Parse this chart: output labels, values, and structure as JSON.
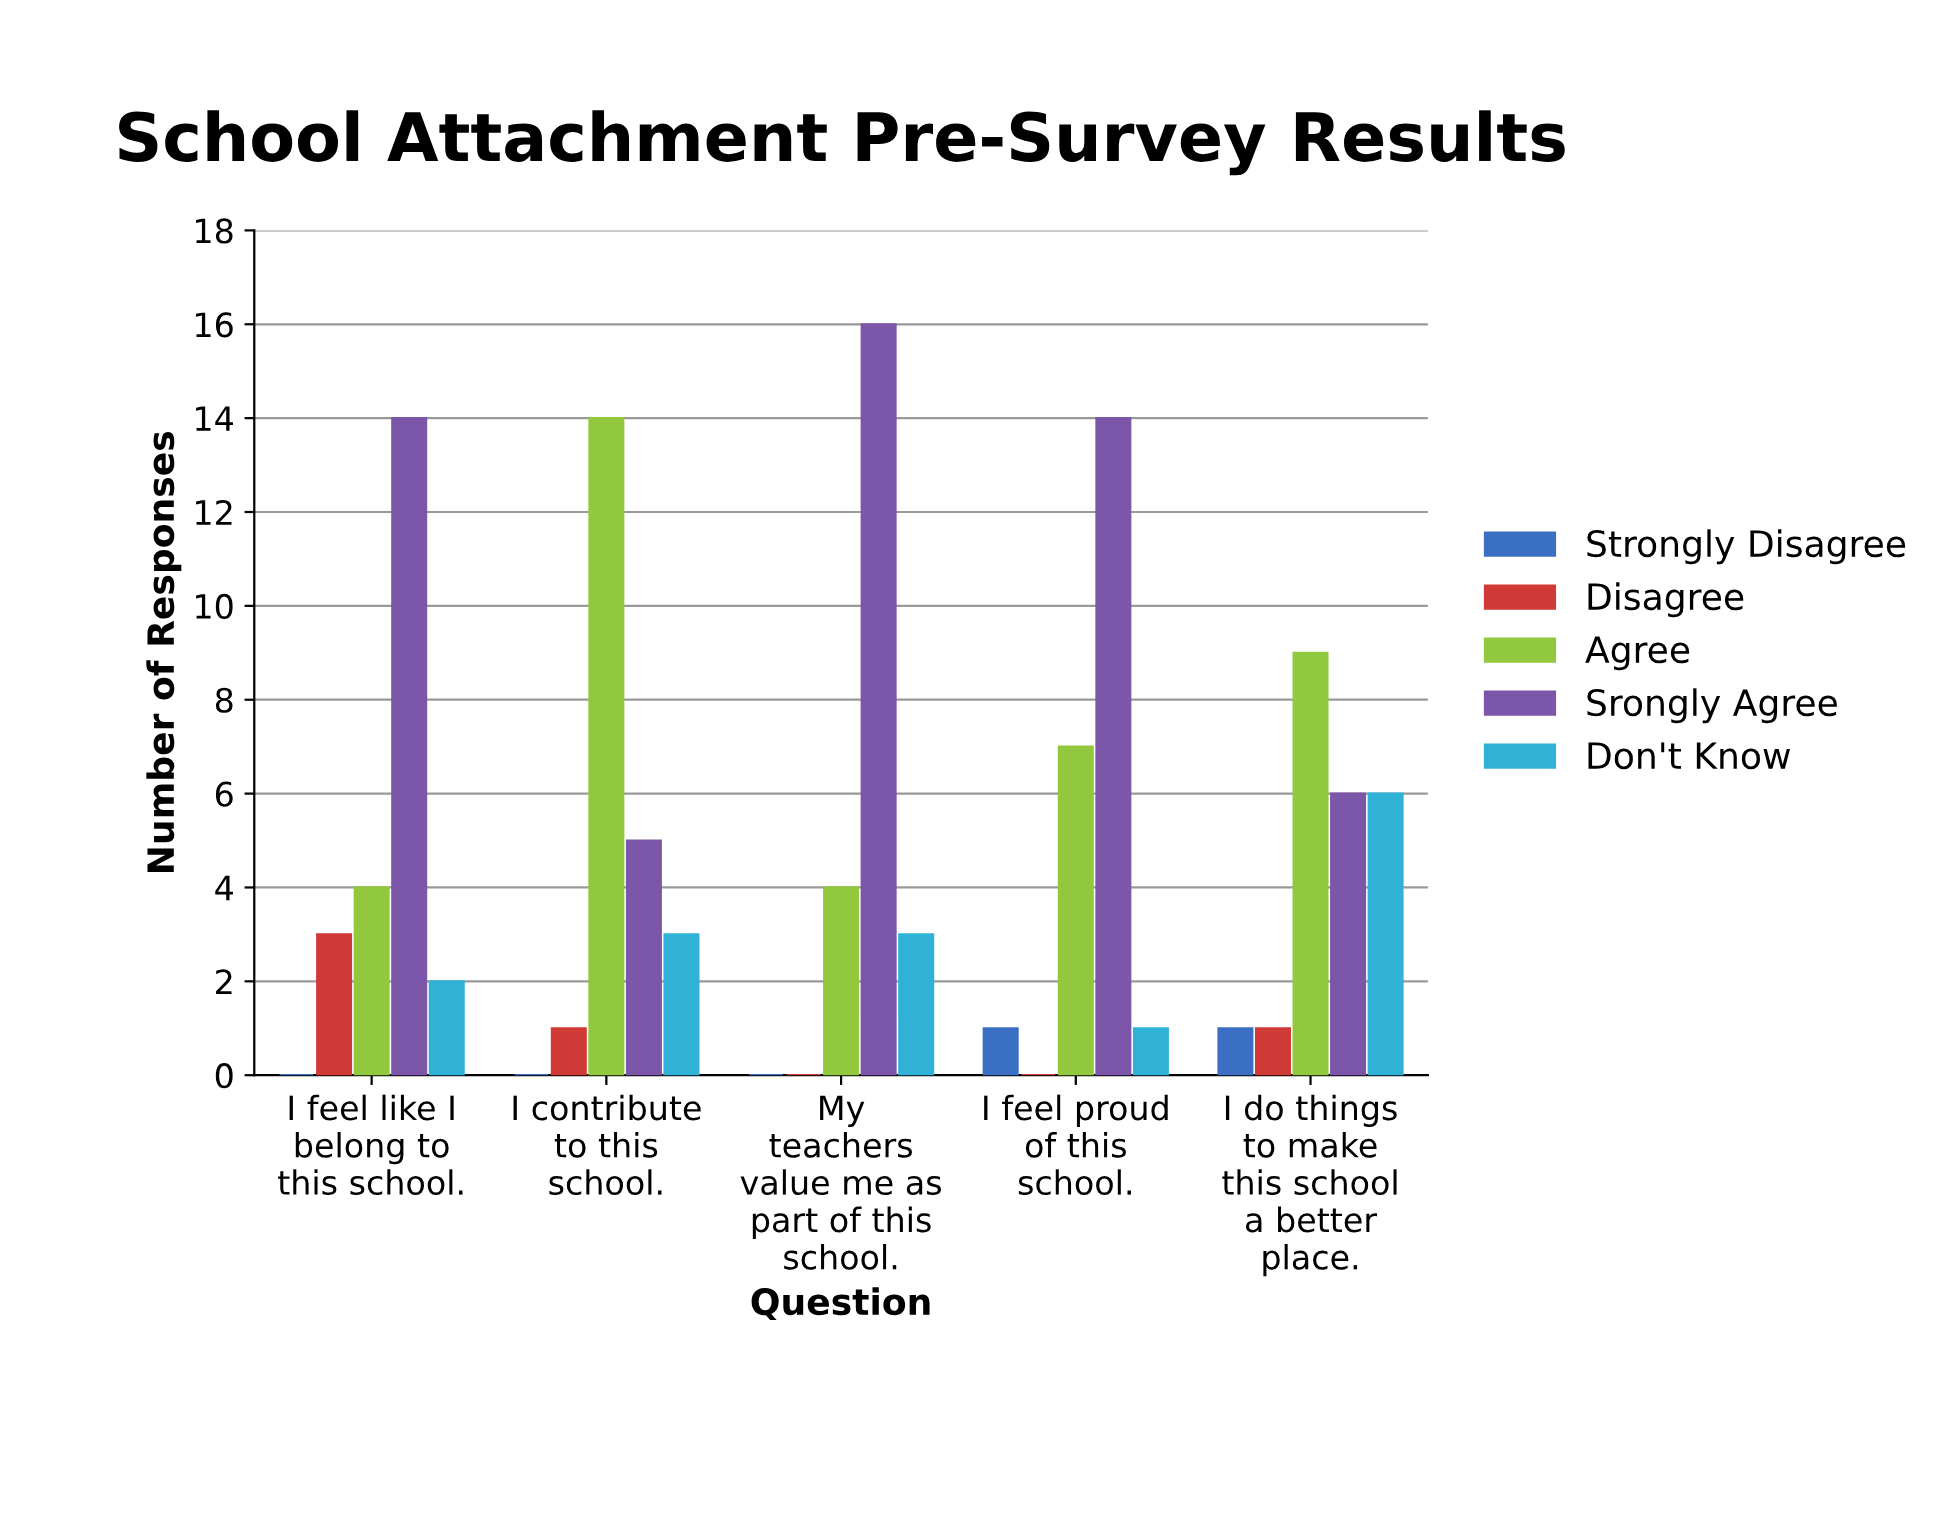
{
  "chart_data": {
    "type": "bar",
    "title": "School Attachment Pre-Survey Results",
    "xlabel": "Question",
    "ylabel": "Number of Responses",
    "categories": [
      "I feel like I\nbelong to\nthis school.",
      "I contribute\nto this\nschool.",
      "My\nteachers\nvalue me as\npart of this\nschool.",
      "I feel proud\nof this\nschool.",
      "I do things\nto make\nthis school\na better\nplace."
    ],
    "series": [
      {
        "name": "Strongly Disagree",
        "color": "#3a6fc4",
        "values": [
          0,
          0,
          0,
          1,
          1
        ]
      },
      {
        "name": "Disagree",
        "color": "#d03a36",
        "values": [
          3,
          1,
          0,
          0,
          1
        ]
      },
      {
        "name": "Agree",
        "color": "#92c83e",
        "values": [
          4,
          14,
          4,
          7,
          9
        ]
      },
      {
        "name": "Srongly Agree",
        "color": "#7c56a8",
        "values": [
          14,
          5,
          16,
          14,
          6
        ]
      },
      {
        "name": "Don't Know",
        "color": "#2fb2d6",
        "values": [
          2,
          3,
          3,
          1,
          6
        ]
      }
    ],
    "ylim": [
      0,
      18
    ],
    "yticks": [
      0,
      2,
      4,
      6,
      8,
      10,
      12,
      14,
      16,
      18
    ],
    "grid": "y",
    "legend": "right"
  }
}
